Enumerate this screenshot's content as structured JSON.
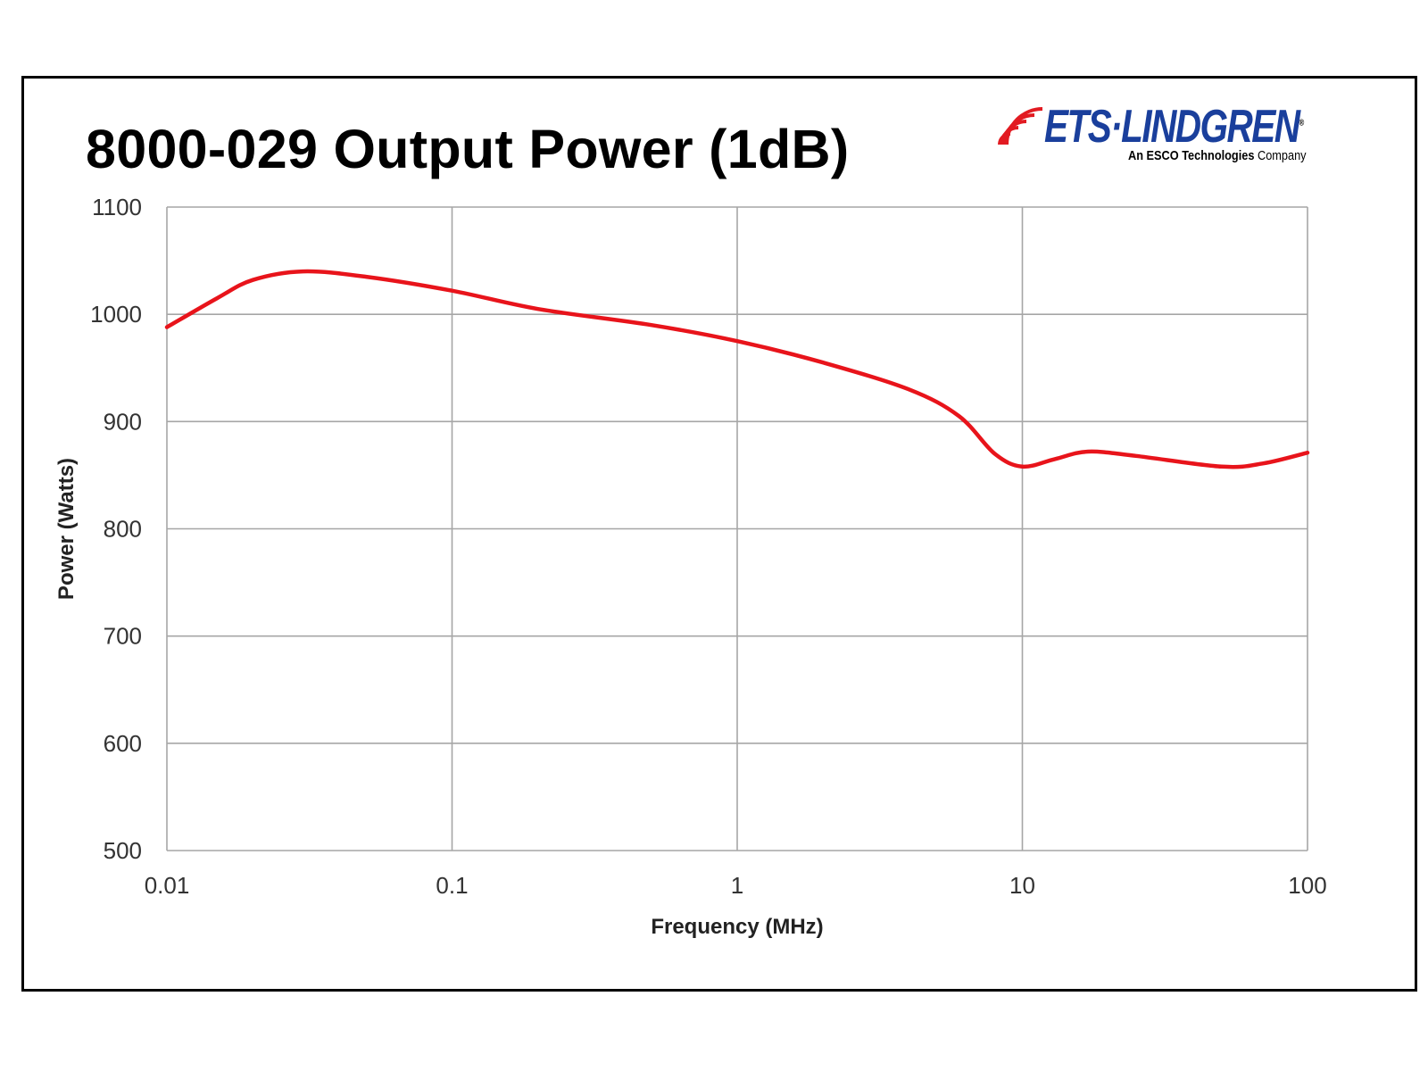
{
  "header": {
    "title": "8000-029 Output Power (1dB)"
  },
  "logo": {
    "brand": "ETS·LINDGREN",
    "registered": "®",
    "tagline_bold": "An ESCO Technologies",
    "tagline_rest": " Company",
    "brand_color": "#1a3f9c",
    "stripe_color": "#e21b22"
  },
  "chart_data": {
    "type": "line",
    "title": "8000-029 Output Power (1dB)",
    "xlabel": "Frequency (MHz)",
    "ylabel": "Power (Watts)",
    "x_scale": "log",
    "xlim": [
      0.01,
      100
    ],
    "ylim": [
      500,
      1100
    ],
    "x_ticks": [
      "0.01",
      "0.1",
      "1",
      "10",
      "100"
    ],
    "y_ticks": [
      "500",
      "600",
      "700",
      "800",
      "900",
      "1000",
      "1100"
    ],
    "grid": true,
    "legend": "none",
    "line_color": "#e8141b",
    "grid_color": "#a6a6a6",
    "series": [
      {
        "x": [
          0.01,
          0.015,
          0.02,
          0.03,
          0.05,
          0.1,
          0.2,
          0.5,
          1,
          2,
          4,
          6,
          8,
          10,
          13,
          17,
          25,
          50,
          70,
          100
        ],
        "y": [
          988,
          1015,
          1032,
          1040,
          1035,
          1022,
          1005,
          990,
          975,
          955,
          930,
          905,
          870,
          858,
          865,
          872,
          868,
          858,
          861,
          871
        ]
      }
    ]
  }
}
